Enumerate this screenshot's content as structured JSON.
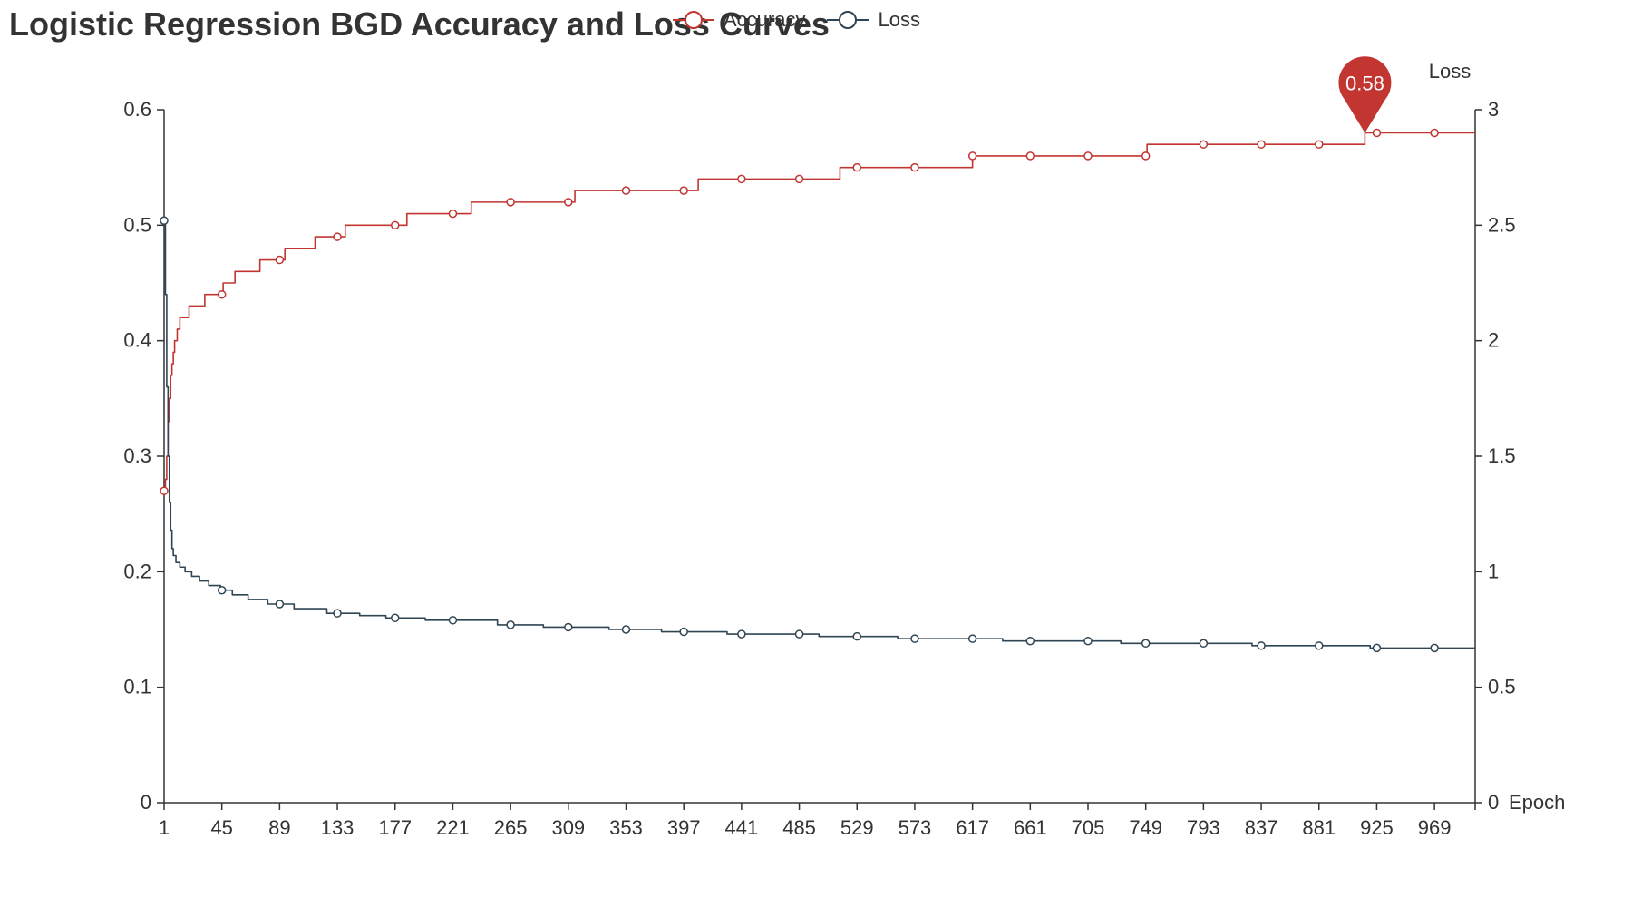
{
  "chart_data": {
    "type": "line",
    "title": "Logistic Regression BGD Accuracy and Loss Curves",
    "xlabel": "Epoch",
    "ylabel": "",
    "y2label": "Loss",
    "x_tick_labels": [
      "1",
      "45",
      "89",
      "133",
      "177",
      "221",
      "265",
      "309",
      "353",
      "397",
      "441",
      "485",
      "529",
      "573",
      "617",
      "661",
      "705",
      "749",
      "793",
      "837",
      "881",
      "925",
      "969"
    ],
    "x_range": [
      1,
      1000
    ],
    "y_left": {
      "min": 0,
      "max": 0.6,
      "ticks": [
        "0",
        "0.1",
        "0.2",
        "0.3",
        "0.4",
        "0.5",
        "0.6"
      ]
    },
    "y_right": {
      "min": 0,
      "max": 3,
      "ticks": [
        "0",
        "0.5",
        "1",
        "1.5",
        "2",
        "2.5",
        "3"
      ]
    },
    "legend_position": "top-center",
    "grid": false,
    "series": [
      {
        "name": "Accuracy",
        "axis": "left",
        "color": "#c23531",
        "step": true,
        "steps": [
          [
            1,
            0.27
          ],
          [
            2,
            0.28
          ],
          [
            3,
            0.3
          ],
          [
            4,
            0.33
          ],
          [
            5,
            0.35
          ],
          [
            6,
            0.37
          ],
          [
            7,
            0.38
          ],
          [
            8,
            0.39
          ],
          [
            9,
            0.4
          ],
          [
            11,
            0.41
          ],
          [
            13,
            0.42
          ],
          [
            20,
            0.43
          ],
          [
            32,
            0.44
          ],
          [
            46,
            0.45
          ],
          [
            55,
            0.46
          ],
          [
            74,
            0.47
          ],
          [
            93,
            0.48
          ],
          [
            116,
            0.49
          ],
          [
            139,
            0.5
          ],
          [
            186,
            0.51
          ],
          [
            235,
            0.52
          ],
          [
            314,
            0.53
          ],
          [
            408,
            0.54
          ],
          [
            516,
            0.55
          ],
          [
            617,
            0.56
          ],
          [
            750,
            0.57
          ],
          [
            916,
            0.58
          ]
        ],
        "max_marker": {
          "x": 916,
          "value": 0.58,
          "label": "0.58"
        }
      },
      {
        "name": "Loss",
        "axis": "right",
        "color": "#2f4554",
        "step": true,
        "steps": [
          [
            1,
            2.52
          ],
          [
            2,
            2.2
          ],
          [
            3,
            1.8
          ],
          [
            4,
            1.5
          ],
          [
            5,
            1.3
          ],
          [
            6,
            1.18
          ],
          [
            7,
            1.1
          ],
          [
            8,
            1.07
          ],
          [
            10,
            1.04
          ],
          [
            13,
            1.02
          ],
          [
            17,
            1.0
          ],
          [
            22,
            0.98
          ],
          [
            28,
            0.96
          ],
          [
            35,
            0.94
          ],
          [
            44,
            0.92
          ],
          [
            53,
            0.9
          ],
          [
            65,
            0.88
          ],
          [
            80,
            0.86
          ],
          [
            100,
            0.84
          ],
          [
            125,
            0.82
          ],
          [
            150,
            0.81
          ],
          [
            170,
            0.8
          ],
          [
            200,
            0.79
          ],
          [
            255,
            0.77
          ],
          [
            290,
            0.76
          ],
          [
            340,
            0.75
          ],
          [
            380,
            0.74
          ],
          [
            430,
            0.73
          ],
          [
            500,
            0.72
          ],
          [
            560,
            0.71
          ],
          [
            640,
            0.7
          ],
          [
            730,
            0.69
          ],
          [
            830,
            0.68
          ],
          [
            920,
            0.67
          ]
        ]
      }
    ]
  }
}
